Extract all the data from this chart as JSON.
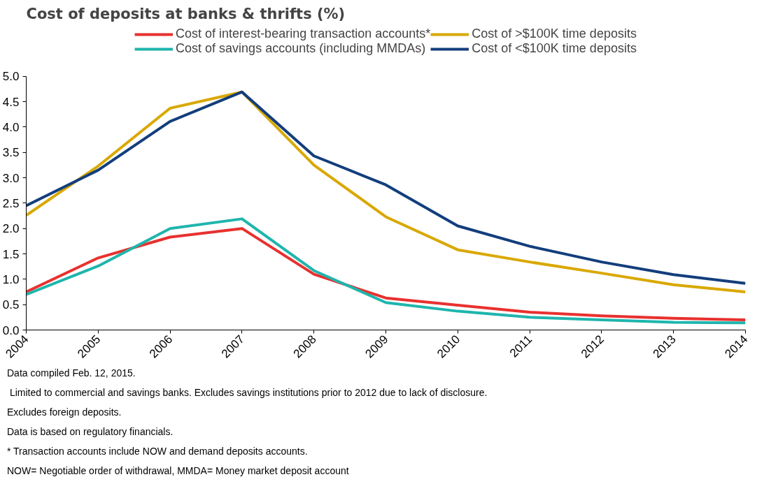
{
  "chart_data": {
    "type": "line",
    "title": "Cost of deposits at banks & thrifts (%)",
    "x": [
      2004,
      2005,
      2006,
      2007,
      2008,
      2009,
      2010,
      2011,
      2012,
      2013,
      2014
    ],
    "xlim": [
      2004,
      2014
    ],
    "xticks": [
      2004,
      2005,
      2006,
      2007,
      2008,
      2009,
      2010,
      2011,
      2012,
      2013,
      2014
    ],
    "ylim": [
      0,
      5
    ],
    "yticks": [
      {
        "value": 0,
        "label": "0.0"
      },
      0.5,
      {
        "value": 1,
        "label": "1.0"
      },
      1.5,
      {
        "value": 2,
        "label": "2.0"
      },
      2.5,
      {
        "value": 3,
        "label": "3.0"
      },
      3.5,
      {
        "value": 4,
        "label": "4.0"
      },
      4.5,
      {
        "value": 5,
        "label": "5.0"
      }
    ],
    "grid": false,
    "legend": "top",
    "marker": "none",
    "line_style": "solid",
    "series": [
      {
        "name": "Cost of interest-bearing transaction accounts*",
        "color": "#e8312f",
        "values": [
          0.75,
          1.42,
          1.83,
          2.0,
          1.1,
          0.63,
          0.49,
          0.35,
          0.28,
          0.23,
          0.2
        ]
      },
      {
        "name": "Cost of savings accounts (including MMDAs)",
        "color": "#1fb5ad",
        "values": [
          0.7,
          1.26,
          2.0,
          2.19,
          1.17,
          0.54,
          0.37,
          0.25,
          0.2,
          0.15,
          0.14
        ]
      },
      {
        "name": "Cost of >$100K time deposits",
        "color": "#d9a800",
        "values": [
          2.26,
          3.23,
          4.37,
          4.69,
          3.25,
          2.23,
          1.58,
          1.34,
          1.12,
          0.89,
          0.75
        ]
      },
      {
        "name": "Cost of <$100K time deposits",
        "color": "#133e7c",
        "values": [
          2.45,
          3.15,
          4.11,
          4.69,
          3.43,
          2.86,
          2.05,
          1.65,
          1.34,
          1.09,
          0.92
        ]
      }
    ],
    "annotations": [
      "Data compiled Feb. 12, 2015.",
      " Limited to commercial and savings banks. Excludes savings institutions prior to 2012 due to lack of disclosure.",
      "Excludes foreign deposits.",
      "Data is based on regulatory financials.",
      "* Transaction accounts include NOW and demand deposits accounts.",
      "NOW= Negotiable order of withdrawal, MMDA= Money market deposit account"
    ]
  }
}
